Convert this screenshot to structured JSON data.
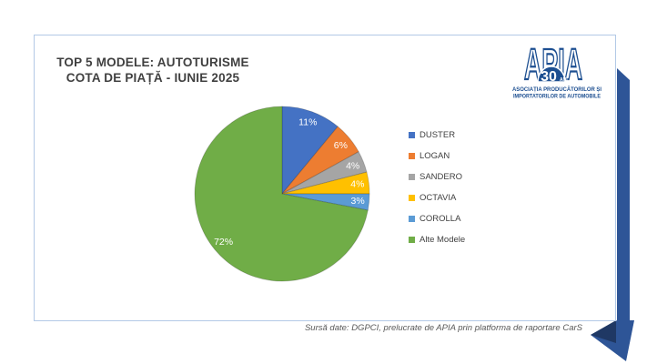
{
  "card": {
    "title_line1": "TOP 5 MODELE: AUTOTURISME",
    "title_line2": "COTA DE PIAȚĂ - IUNIE 2025"
  },
  "logo": {
    "acronym": "APIA",
    "badge_number": "30",
    "badge_suffix": "ANI",
    "caption_line1": "ASOCIAȚIA  PRODUCĂTORILOR  ȘI",
    "caption_line2": "IMPORTATORILOR DE AUTOMOBILE",
    "color": "#1D4F91"
  },
  "chart_data": {
    "type": "pie",
    "title": "TOP 5 MODELE: AUTOTURISME — COTA DE PIAȚĂ - IUNIE 2025",
    "unit": "%",
    "direction": "clockwise",
    "start_angle_deg": 0,
    "legend_position": "right",
    "slices": [
      {
        "label": "DUSTER",
        "value": 11,
        "data_label": "11%",
        "color": "#4472C4"
      },
      {
        "label": "LOGAN",
        "value": 6,
        "data_label": "6%",
        "color": "#ED7D31"
      },
      {
        "label": "SANDERO",
        "value": 4,
        "data_label": "4%",
        "color": "#A5A5A5"
      },
      {
        "label": "OCTAVIA",
        "value": 4,
        "data_label": "4%",
        "color": "#FFC000"
      },
      {
        "label": "COROLLA",
        "value": 3,
        "data_label": "3%",
        "color": "#5B9BD5"
      },
      {
        "label": "Alte Modele",
        "value": 72,
        "data_label": "72%",
        "color": "#70AD47"
      }
    ]
  },
  "footer": {
    "source_note": "Sursă date: DGPCI, prelucrate de APIA prin platforma de raportare CarS"
  },
  "decor": {
    "ribbon_color": "#2E5597",
    "ribbon_fold_color": "#1F3864",
    "card_border_color": "#B3C9E6"
  }
}
